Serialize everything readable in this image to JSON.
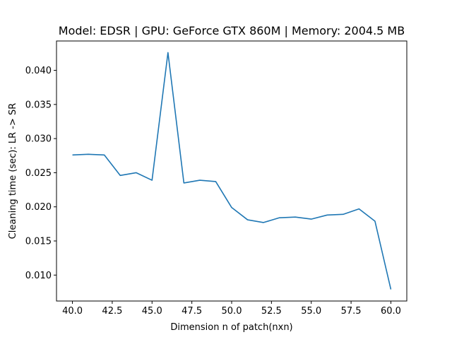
{
  "chart_data": {
    "type": "line",
    "title": "Model: EDSR | GPU: GeForce GTX 860M | Memory: 2004.5 MB",
    "xlabel": "Dimension n of patch(nxn)",
    "ylabel": "Cleaning time (sec): LR -> SR",
    "xlim": [
      39.0,
      61.0
    ],
    "ylim": [
      0.0062,
      0.0443
    ],
    "xticks": [
      40.0,
      42.5,
      45.0,
      47.5,
      50.0,
      52.5,
      55.0,
      57.5,
      60.0
    ],
    "xtick_labels": [
      "40.0",
      "42.5",
      "45.0",
      "47.5",
      "50.0",
      "52.5",
      "55.0",
      "57.5",
      "60.0"
    ],
    "yticks": [
      0.01,
      0.015,
      0.02,
      0.025,
      0.03,
      0.035,
      0.04
    ],
    "ytick_labels": [
      "0.010",
      "0.015",
      "0.020",
      "0.025",
      "0.030",
      "0.035",
      "0.040"
    ],
    "grid": false,
    "series": [
      {
        "color": "#1f77b4",
        "x": [
          40,
          41,
          42,
          43,
          44,
          45,
          46,
          47,
          48,
          49,
          50,
          51,
          52,
          53,
          54,
          55,
          56,
          57,
          58,
          59,
          60
        ],
        "y": [
          0.0276,
          0.0277,
          0.0276,
          0.0246,
          0.025,
          0.0239,
          0.0426,
          0.0235,
          0.0239,
          0.0237,
          0.0199,
          0.0181,
          0.0177,
          0.0184,
          0.0185,
          0.0182,
          0.0188,
          0.0189,
          0.0197,
          0.0179,
          0.0079
        ]
      }
    ]
  }
}
